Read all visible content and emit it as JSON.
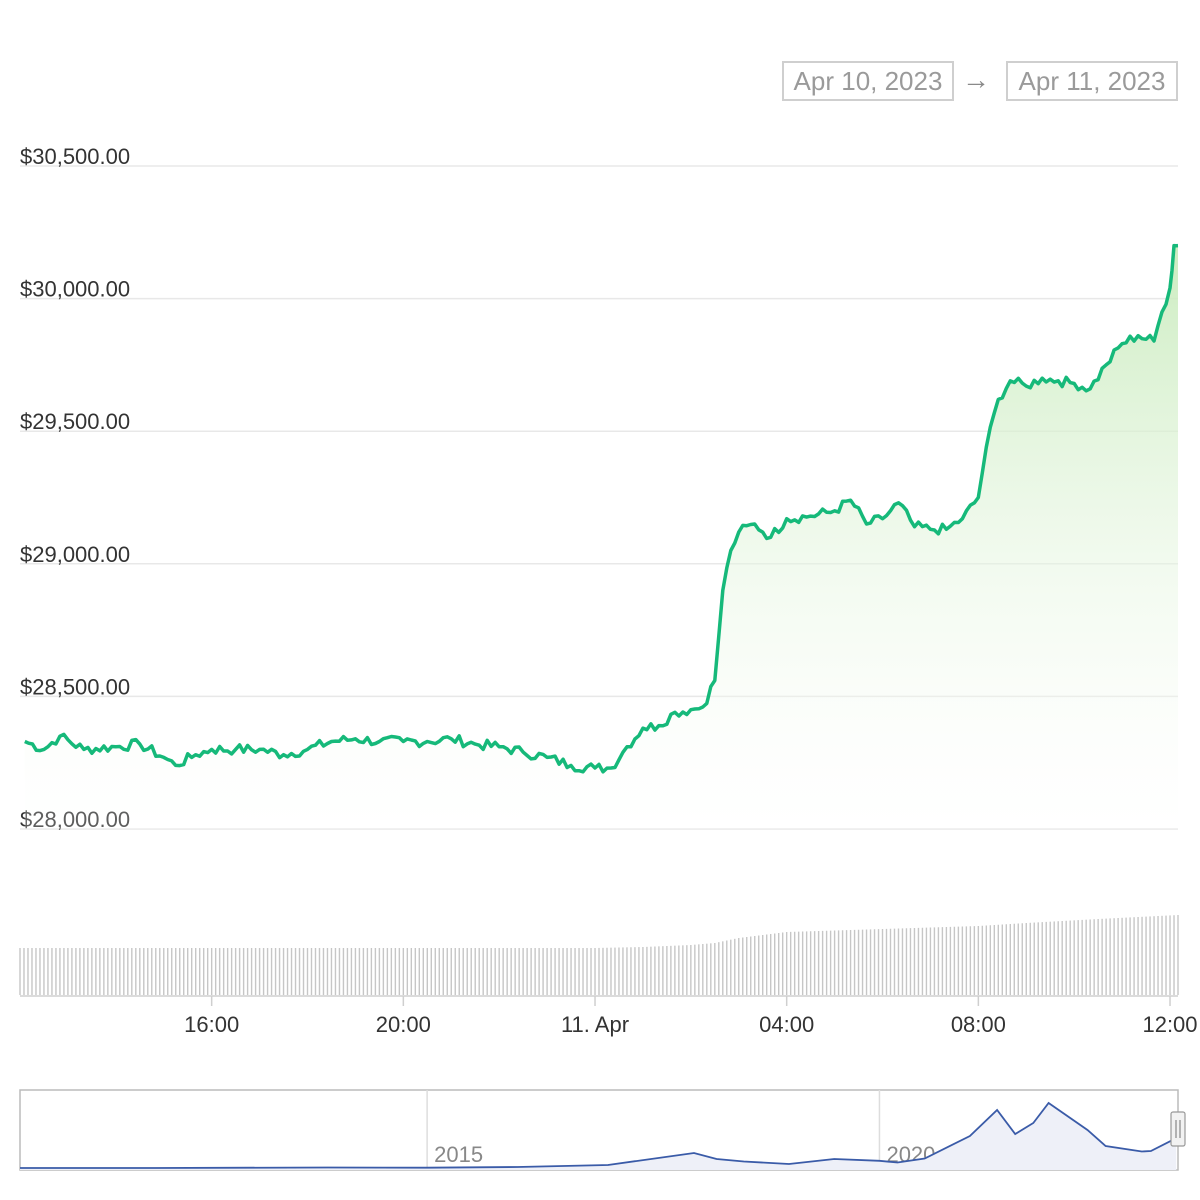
{
  "range_selector": {
    "from": "Apr 10, 2023",
    "arrow": "→",
    "to": "Apr 11, 2023"
  },
  "colors": {
    "price_line": "#16b97a",
    "area_top": "#c9ebc0",
    "grid": "#e8e8e8",
    "volume_bar": "#c6c6c6",
    "navigator_line": "#3a5ba8",
    "navigator_fill": "#eef0f8",
    "axis": "#cfcfcf"
  },
  "chart_data": {
    "type": "line",
    "title": "",
    "xlabel": "",
    "ylabel": "",
    "ylim": [
      28000,
      30500
    ],
    "y_ticks": [
      "$28,000.00",
      "$28,500.00",
      "$29,000.00",
      "$29,500.00",
      "$30,000.00",
      "$30,500.00"
    ],
    "x_ticks": [
      "16:00",
      "20:00",
      "11. Apr",
      "04:00",
      "08:00",
      "12:00"
    ],
    "x_range_hours": [
      "2023-04-10 12:00",
      "2023-04-11 12:10"
    ],
    "series": [
      {
        "values_time_price": [
          [
            "2023-04-10 12:06",
            28330
          ],
          [
            "2023-04-10 12:30",
            28300
          ],
          [
            "2023-04-10 12:50",
            28350
          ],
          [
            "2023-04-10 13:20",
            28300
          ],
          [
            "2023-04-10 14:00",
            28310
          ],
          [
            "2023-04-10 14:30",
            28320
          ],
          [
            "2023-04-10 15:00",
            28270
          ],
          [
            "2023-04-10 15:15",
            28240
          ],
          [
            "2023-04-10 15:40",
            28280
          ],
          [
            "2023-04-10 16:00",
            28300
          ],
          [
            "2023-04-10 16:30",
            28300
          ],
          [
            "2023-04-10 17:00",
            28300
          ],
          [
            "2023-04-10 17:30",
            28280
          ],
          [
            "2023-04-10 18:00",
            28300
          ],
          [
            "2023-04-10 18:30",
            28330
          ],
          [
            "2023-04-10 19:00",
            28340
          ],
          [
            "2023-04-10 19:30",
            28330
          ],
          [
            "2023-04-10 20:00",
            28330
          ],
          [
            "2023-04-10 20:30",
            28330
          ],
          [
            "2023-04-10 21:00",
            28340
          ],
          [
            "2023-04-10 21:30",
            28320
          ],
          [
            "2023-04-10 22:00",
            28310
          ],
          [
            "2023-04-10 22:30",
            28290
          ],
          [
            "2023-04-10 23:00",
            28270
          ],
          [
            "2023-04-10 23:30",
            28240
          ],
          [
            "2023-04-11 00:00",
            28230
          ],
          [
            "2023-04-11 00:20",
            28230
          ],
          [
            "2023-04-11 00:40",
            28310
          ],
          [
            "2023-04-11 01:00",
            28380
          ],
          [
            "2023-04-11 01:20",
            28390
          ],
          [
            "2023-04-11 01:40",
            28440
          ],
          [
            "2023-04-11 02:00",
            28450
          ],
          [
            "2023-04-11 02:15",
            28460
          ],
          [
            "2023-04-11 02:30",
            28560
          ],
          [
            "2023-04-11 02:40",
            28900
          ],
          [
            "2023-04-11 02:50",
            29050
          ],
          [
            "2023-04-11 03:00",
            29120
          ],
          [
            "2023-04-11 03:20",
            29150
          ],
          [
            "2023-04-11 03:40",
            29100
          ],
          [
            "2023-04-11 04:00",
            29170
          ],
          [
            "2023-04-11 04:30",
            29180
          ],
          [
            "2023-04-11 05:00",
            29200
          ],
          [
            "2023-04-11 05:20",
            29240
          ],
          [
            "2023-04-11 05:40",
            29150
          ],
          [
            "2023-04-11 06:00",
            29170
          ],
          [
            "2023-04-11 06:20",
            29230
          ],
          [
            "2023-04-11 06:40",
            29140
          ],
          [
            "2023-04-11 07:00",
            29130
          ],
          [
            "2023-04-11 07:20",
            29130
          ],
          [
            "2023-04-11 07:40",
            29170
          ],
          [
            "2023-04-11 08:00",
            29250
          ],
          [
            "2023-04-11 08:10",
            29440
          ],
          [
            "2023-04-11 08:25",
            29620
          ],
          [
            "2023-04-11 08:40",
            29690
          ],
          [
            "2023-04-11 09:00",
            29670
          ],
          [
            "2023-04-11 09:20",
            29700
          ],
          [
            "2023-04-11 09:40",
            29690
          ],
          [
            "2023-04-11 10:00",
            29680
          ],
          [
            "2023-04-11 10:20",
            29660
          ],
          [
            "2023-04-11 10:40",
            29750
          ],
          [
            "2023-04-11 11:00",
            29830
          ],
          [
            "2023-04-11 11:20",
            29860
          ],
          [
            "2023-04-11 11:40",
            29840
          ],
          [
            "2023-04-11 11:50",
            29950
          ],
          [
            "2023-04-11 12:00",
            30040
          ],
          [
            "2023-04-11 12:05",
            30200
          ],
          [
            "2023-04-11 12:10",
            30200
          ]
        ]
      }
    ],
    "volume": {
      "description_levels": [
        0.47,
        0.47,
        0.47,
        0.47,
        0.48,
        0.5,
        0.52,
        0.57,
        0.63,
        0.66,
        0.69,
        0.72,
        0.76,
        0.8
      ],
      "level_times": [
        "2023-04-10 12:00",
        "2023-04-10 16:00",
        "2023-04-10 20:00",
        "2023-04-11 00:00",
        "2023-04-11 01:00",
        "2023-04-11 02:00",
        "2023-04-11 02:30",
        "2023-04-11 03:00",
        "2023-04-11 04:00",
        "2023-04-11 06:00",
        "2023-04-11 08:00",
        "2023-04-11 09:00",
        "2023-04-11 10:30",
        "2023-04-11 12:10"
      ]
    },
    "navigator": {
      "x_labels": [
        "2015",
        "2020"
      ],
      "series_years": [
        2010,
        2012,
        2013.9,
        2015,
        2016,
        2017,
        2017.95,
        2018.2,
        2018.5,
        2019,
        2019.5,
        2020,
        2020.2,
        2020.5,
        2021,
        2021.3,
        2021.5,
        2021.7,
        2021.87,
        2022.3,
        2022.5,
        2022.9,
        2023,
        2023.28
      ],
      "series_price": [
        0,
        0,
        500,
        300,
        1000,
        3000,
        15000,
        9000,
        6500,
        4000,
        9000,
        7200,
        5500,
        9500,
        32000,
        58000,
        34000,
        45000,
        65000,
        38000,
        22000,
        16500,
        17000,
        29800
      ],
      "years_range": [
        2010.5,
        2023.3
      ]
    }
  }
}
